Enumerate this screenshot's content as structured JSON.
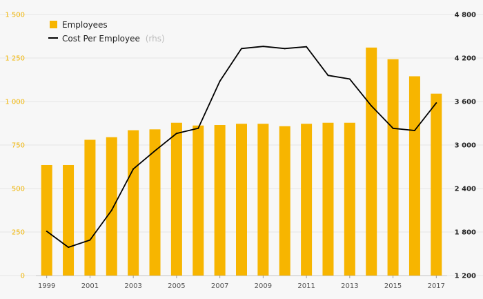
{
  "chart_data": {
    "type": "bar",
    "categories": [
      "1999",
      "2000",
      "2001",
      "2002",
      "2003",
      "2004",
      "2005",
      "2006",
      "2007",
      "2008",
      "2009",
      "2010",
      "2011",
      "2012",
      "2013",
      "2014",
      "2015",
      "2016",
      "2017"
    ],
    "x_tick_labels": [
      "1999",
      "2001",
      "2003",
      "2005",
      "2007",
      "2009",
      "2011",
      "2013",
      "2015",
      "2017"
    ],
    "series": [
      {
        "name": "Employees",
        "type": "bar",
        "axis": "left",
        "color": "#f7b500",
        "values": [
          635,
          635,
          780,
          795,
          835,
          840,
          878,
          862,
          865,
          872,
          872,
          858,
          872,
          878,
          878,
          1310,
          1243,
          1145,
          1045
        ]
      },
      {
        "name": "Cost Per Employee",
        "type": "line",
        "axis": "right",
        "color": "#000000",
        "values": [
          1810,
          1590,
          1690,
          2100,
          2670,
          2920,
          3160,
          3230,
          3880,
          4330,
          4360,
          4330,
          4355,
          3960,
          3910,
          3540,
          3230,
          3200,
          3580
        ]
      }
    ],
    "legend_note": "(rhs)",
    "y_left": {
      "ylim": [
        0,
        1500
      ],
      "ticks": [
        0,
        250,
        500,
        750,
        1000,
        1250,
        1500
      ],
      "tick_labels": [
        "0",
        "250",
        "500",
        "750",
        "1 000",
        "1 250",
        "1 500"
      ]
    },
    "y_right": {
      "ylim": [
        1200,
        4800
      ],
      "ticks": [
        1200,
        1800,
        2400,
        3000,
        3600,
        4200,
        4800
      ],
      "tick_labels": [
        "1 200",
        "1 800",
        "2 400",
        "3 000",
        "3 600",
        "4 200",
        "4 800"
      ]
    },
    "grid": true,
    "legend_position": "top-left"
  }
}
